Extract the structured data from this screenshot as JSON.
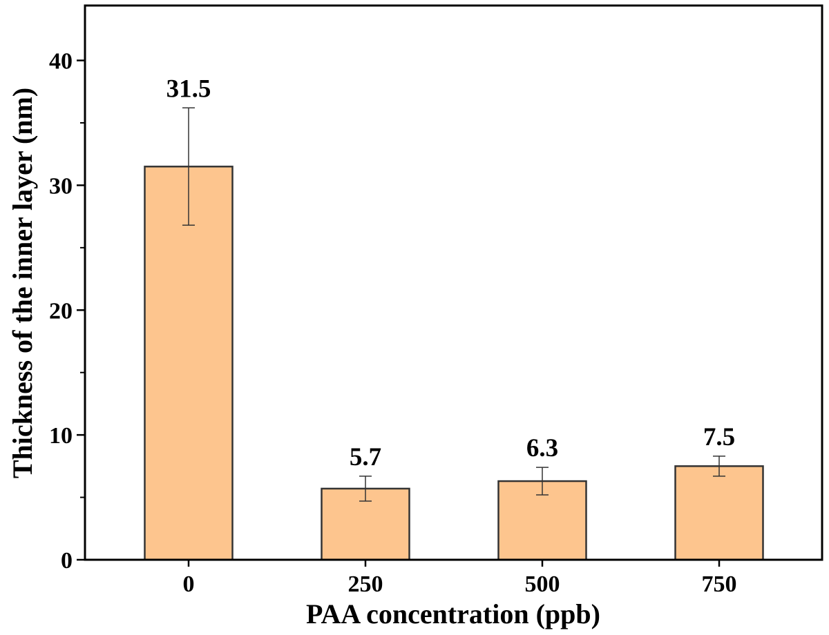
{
  "chart_data": {
    "type": "bar",
    "categories": [
      "0",
      "250",
      "500",
      "750"
    ],
    "values": [
      31.5,
      5.7,
      6.3,
      7.5
    ],
    "error_bars": [
      4.7,
      1.0,
      1.1,
      0.8
    ],
    "data_labels": [
      "31.5",
      "5.7",
      "6.3",
      "7.5"
    ],
    "xlabel": "PAA concentration (ppb)",
    "ylabel": "Thickness of the inner layer (nm)",
    "ylim": [
      0,
      44.4
    ],
    "yticks": [
      0,
      10,
      20,
      30,
      40
    ],
    "ytick_labels": [
      "0",
      "10",
      "20",
      "30",
      "40"
    ],
    "grid": false,
    "legend": "none",
    "colors": {
      "bar_fill": "#fdc58e",
      "bar_stroke": "#333333",
      "axis": "#000000"
    }
  }
}
